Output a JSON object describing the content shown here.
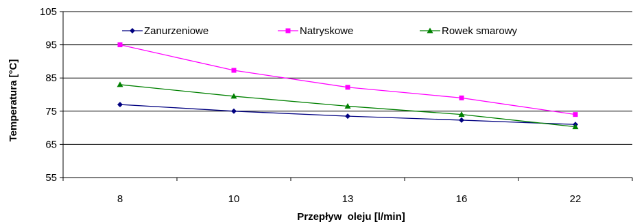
{
  "chart_data": {
    "type": "line",
    "categories": [
      "8",
      "10",
      "13",
      "16",
      "22"
    ],
    "ylabel": "Temperatura [°C]",
    "xlabel": "Przepływ  oleju [l/min]",
    "ylim": [
      55,
      105
    ],
    "yticks": [
      55,
      65,
      75,
      85,
      95,
      105
    ],
    "grid": "horizontal",
    "legend": "top",
    "series": [
      {
        "name": "Zanurzeniowe",
        "values": [
          77,
          75,
          73.5,
          72.3,
          71
        ],
        "color": "#000080",
        "marker": "diamond"
      },
      {
        "name": "Natryskowe",
        "values": [
          95,
          87.3,
          82.2,
          79,
          74
        ],
        "color": "#ff00ff",
        "marker": "square"
      },
      {
        "name": "Rowek smarowy",
        "values": [
          83,
          79.5,
          76.5,
          74,
          70.3
        ],
        "color": "#008000",
        "marker": "triangle"
      }
    ]
  }
}
